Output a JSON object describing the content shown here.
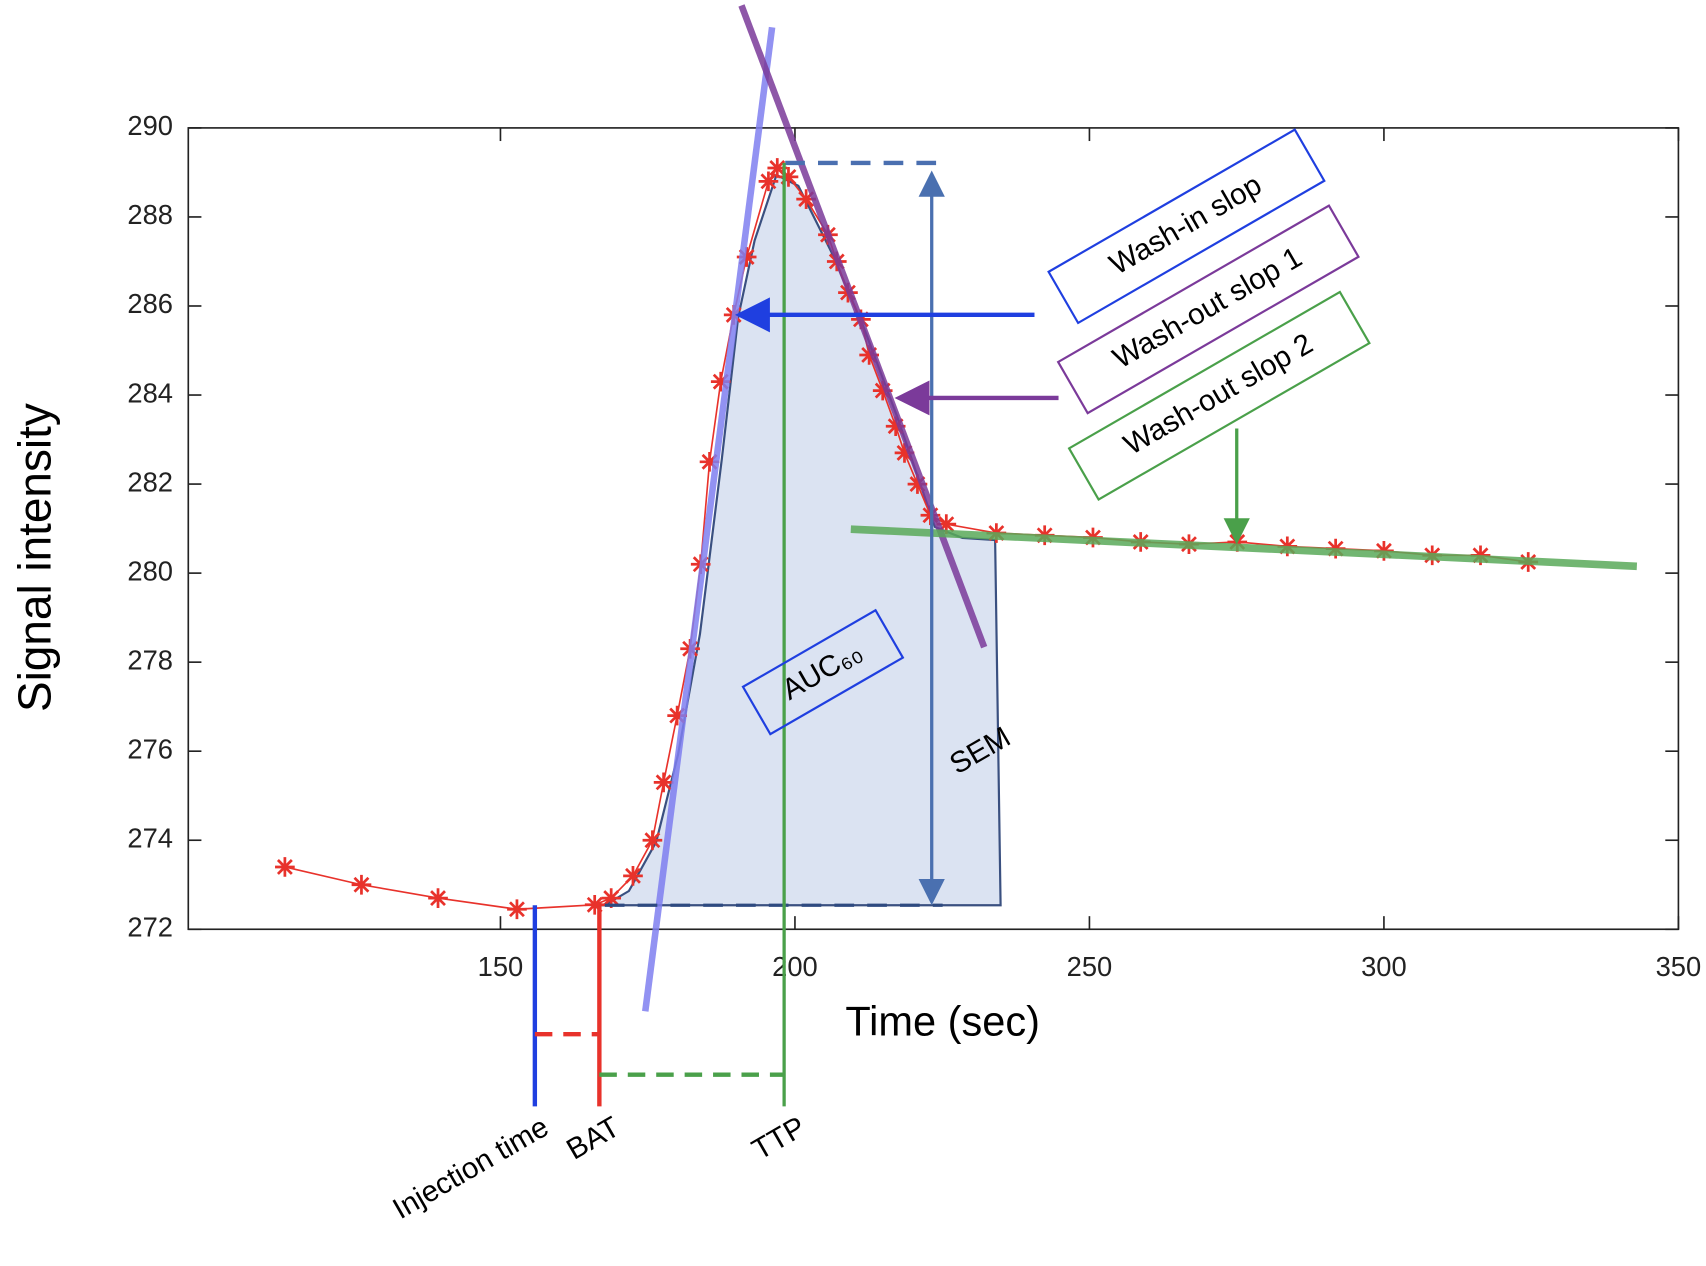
{
  "chart_data": {
    "type": "line",
    "xlabel": "Time (sec)",
    "ylabel": "Signal intensity",
    "xlim": [
      97,
      350
    ],
    "xticks": [
      150,
      200,
      250,
      300,
      350
    ],
    "ylim": [
      272,
      290
    ],
    "yticks": [
      272,
      274,
      276,
      278,
      280,
      282,
      284,
      286,
      288,
      290
    ],
    "x": [
      113.4,
      126.4,
      139.4,
      152.8,
      166,
      168.8,
      172.5,
      175.8,
      177.7,
      180,
      182.2,
      184,
      185.5,
      187.4,
      189.6,
      191.8,
      195.5,
      197,
      198.9,
      201.9,
      205.6,
      207.1,
      209,
      211.2,
      212.6,
      214.9,
      217.1,
      218.6,
      220.8,
      223,
      225.7,
      234.2,
      242.4,
      250.6,
      258.7,
      266.9,
      275.1,
      283.6,
      291.8,
      300,
      308.2,
      316.4,
      324.5
    ],
    "series": [
      {
        "color": "#e8322b",
        "values": [
          273.4,
          273.0,
          272.7,
          272.45,
          272.55,
          272.7,
          273.2,
          274.0,
          275.3,
          276.8,
          278.3,
          280.2,
          282.5,
          284.3,
          285.8,
          287.1,
          288.8,
          289.1,
          288.9,
          288.4,
          287.6,
          287.0,
          286.3,
          285.7,
          284.9,
          284.1,
          283.3,
          282.7,
          282.0,
          281.3,
          281.1,
          280.9,
          280.85,
          280.8,
          280.7,
          280.65,
          280.7,
          280.6,
          280.55,
          280.5,
          280.4,
          280.4,
          280.25
        ]
      }
    ],
    "annotations": [
      "Wash-in slop",
      "Wash-out slop 1",
      "Wash-out slop 2",
      "AUC₆₀",
      "SEM",
      "Injection time",
      "BAT",
      "TTP"
    ]
  }
}
